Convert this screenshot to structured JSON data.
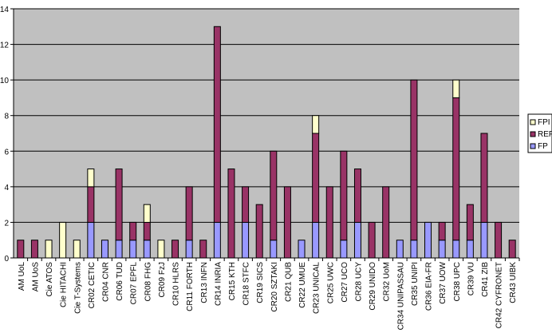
{
  "chart_data": {
    "type": "bar",
    "stacked": true,
    "grid": true,
    "legend_position": "right",
    "ylim": [
      0,
      14
    ],
    "yticks": [
      0,
      2,
      4,
      6,
      8,
      10,
      12,
      14
    ],
    "categories": [
      "AM UoL",
      "AM UoS",
      "Cie ATOS",
      "Cie HITACHI",
      "Cie T-Systems",
      "CR02 CETIC",
      "CR04 CNR",
      "CR06 TUD",
      "CR07 EPFL",
      "CR08 FHG",
      "CR09 FzJ",
      "CR10 HLRS",
      "CR11 FORTH",
      "CR13 INFN",
      "CR14 INRIA",
      "CR15 KTH",
      "CR18 STFC",
      "CR19 SICS",
      "CR20 SZTAKI",
      "CR21 QUB",
      "CR22 UMUE",
      "CR23 UNICAL",
      "CR25 UWC",
      "CR27 UCO",
      "CR28 UCY",
      "CR29 UNIDO",
      "CR32 UoM",
      "CR34 UNIPASSAU",
      "CR35 UNIPI",
      "CR36 EIA-FR",
      "CR37 UOW",
      "CR38 UPC",
      "CR39 VU",
      "CR41 ZIB",
      "CR42 CYFRONET",
      "CR43 UIBK"
    ],
    "series": [
      {
        "name": "FP",
        "color": "#9999ff",
        "values": [
          0,
          0,
          0,
          0,
          0,
          2,
          1,
          1,
          1,
          1,
          0,
          0,
          1,
          0,
          2,
          0,
          2,
          0,
          1,
          0,
          1,
          2,
          0,
          1,
          2,
          0,
          0,
          1,
          1,
          2,
          1,
          1,
          1,
          2,
          0,
          0
        ]
      },
      {
        "name": "REP",
        "color": "#993366",
        "values": [
          1,
          1,
          0,
          0,
          0,
          2,
          0,
          4,
          1,
          1,
          0,
          1,
          3,
          1,
          11,
          5,
          2,
          3,
          5,
          4,
          0,
          5,
          4,
          5,
          3,
          2,
          4,
          0,
          9,
          0,
          1,
          8,
          2,
          5,
          2,
          1
        ]
      },
      {
        "name": "FPI",
        "color": "#ffffcc",
        "values": [
          0,
          0,
          1,
          2,
          1,
          1,
          0,
          0,
          0,
          1,
          1,
          0,
          0,
          0,
          0,
          0,
          0,
          0,
          0,
          0,
          0,
          1,
          0,
          0,
          0,
          0,
          0,
          0,
          0,
          0,
          0,
          1,
          0,
          0,
          0,
          0
        ]
      }
    ],
    "legend_order": [
      "FPI",
      "REP",
      "FP"
    ]
  },
  "colors": {
    "plot_background": "#c0c0c0",
    "gridline": "#000000",
    "bar_outline": "#000000"
  }
}
